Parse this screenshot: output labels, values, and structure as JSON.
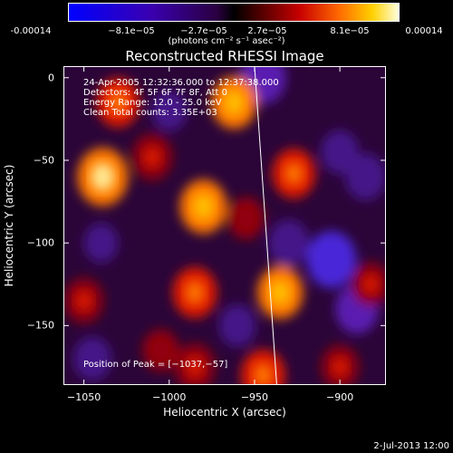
{
  "colorbar": {
    "ticks": [
      "-0.00014",
      "−8.1e−05",
      "−2.7e−05",
      "2.7e−05",
      "8.1e−05",
      "0.00014"
    ],
    "units": "(photons cm⁻² s⁻¹ asec⁻²)"
  },
  "chart_data": {
    "type": "heatmap",
    "title": "Reconstructed RHESSI Image",
    "xlabel": "Heliocentric X (arcsec)",
    "ylabel": "Heliocentric Y (arcsec)",
    "xlim": [
      -1062,
      -873
    ],
    "ylim": [
      -186,
      7
    ],
    "x_ticks": [
      "−1050",
      "−1000",
      "−950",
      "−900"
    ],
    "y_ticks": [
      "0",
      "−50",
      "−100",
      "−150"
    ],
    "color_range": [
      -0.00014,
      0.00014
    ],
    "limb_line": [
      [
        -950,
        7
      ],
      [
        -937,
        -186
      ]
    ],
    "peak_markers": [
      {
        "x": -1039,
        "y": -60,
        "level": 1.0
      },
      {
        "x": -980,
        "y": -78,
        "level": 0.85
      },
      {
        "x": -962,
        "y": -15,
        "level": 0.8
      },
      {
        "x": -1030,
        "y": -15,
        "level": 0.7
      },
      {
        "x": -1010,
        "y": -48,
        "level": 0.6
      },
      {
        "x": -927,
        "y": -58,
        "level": 0.7
      },
      {
        "x": -985,
        "y": -130,
        "level": 0.75
      },
      {
        "x": -935,
        "y": -130,
        "level": 0.8
      },
      {
        "x": -945,
        "y": -180,
        "level": 0.75
      },
      {
        "x": -1050,
        "y": -135,
        "level": 0.55
      },
      {
        "x": -985,
        "y": -175,
        "level": 0.6
      },
      {
        "x": -900,
        "y": -175,
        "level": 0.5
      },
      {
        "x": -882,
        "y": -125,
        "level": 0.5
      },
      {
        "x": -955,
        "y": -85,
        "level": 0.45
      },
      {
        "x": -1005,
        "y": -165,
        "level": 0.45
      }
    ],
    "trough_markers": [
      {
        "x": -905,
        "y": -110,
        "level": -0.95
      },
      {
        "x": -945,
        "y": 0,
        "level": -0.8
      },
      {
        "x": -890,
        "y": -140,
        "level": -0.7
      },
      {
        "x": -930,
        "y": -100,
        "level": -0.6
      },
      {
        "x": -1045,
        "y": -170,
        "level": -0.5
      },
      {
        "x": -1000,
        "y": -20,
        "level": -0.4
      },
      {
        "x": -900,
        "y": -45,
        "level": -0.5
      },
      {
        "x": -960,
        "y": -150,
        "level": -0.45
      },
      {
        "x": -1040,
        "y": -100,
        "level": -0.35
      },
      {
        "x": -885,
        "y": -60,
        "level": -0.6
      }
    ]
  },
  "annotations": {
    "time": "24-Apr-2005 12:32:36.000 to 12:37:38.000",
    "detectors": "Detectors: 4F 5F 6F 7F 8F, Att 0",
    "energy": "Energy Range: 12.0 - 25.0 keV",
    "clean": "Clean    Total counts: 3.35E+03",
    "peak": "Position of Peak = [−1037,−57]"
  },
  "footer": "2-Jul-2013 12:00"
}
